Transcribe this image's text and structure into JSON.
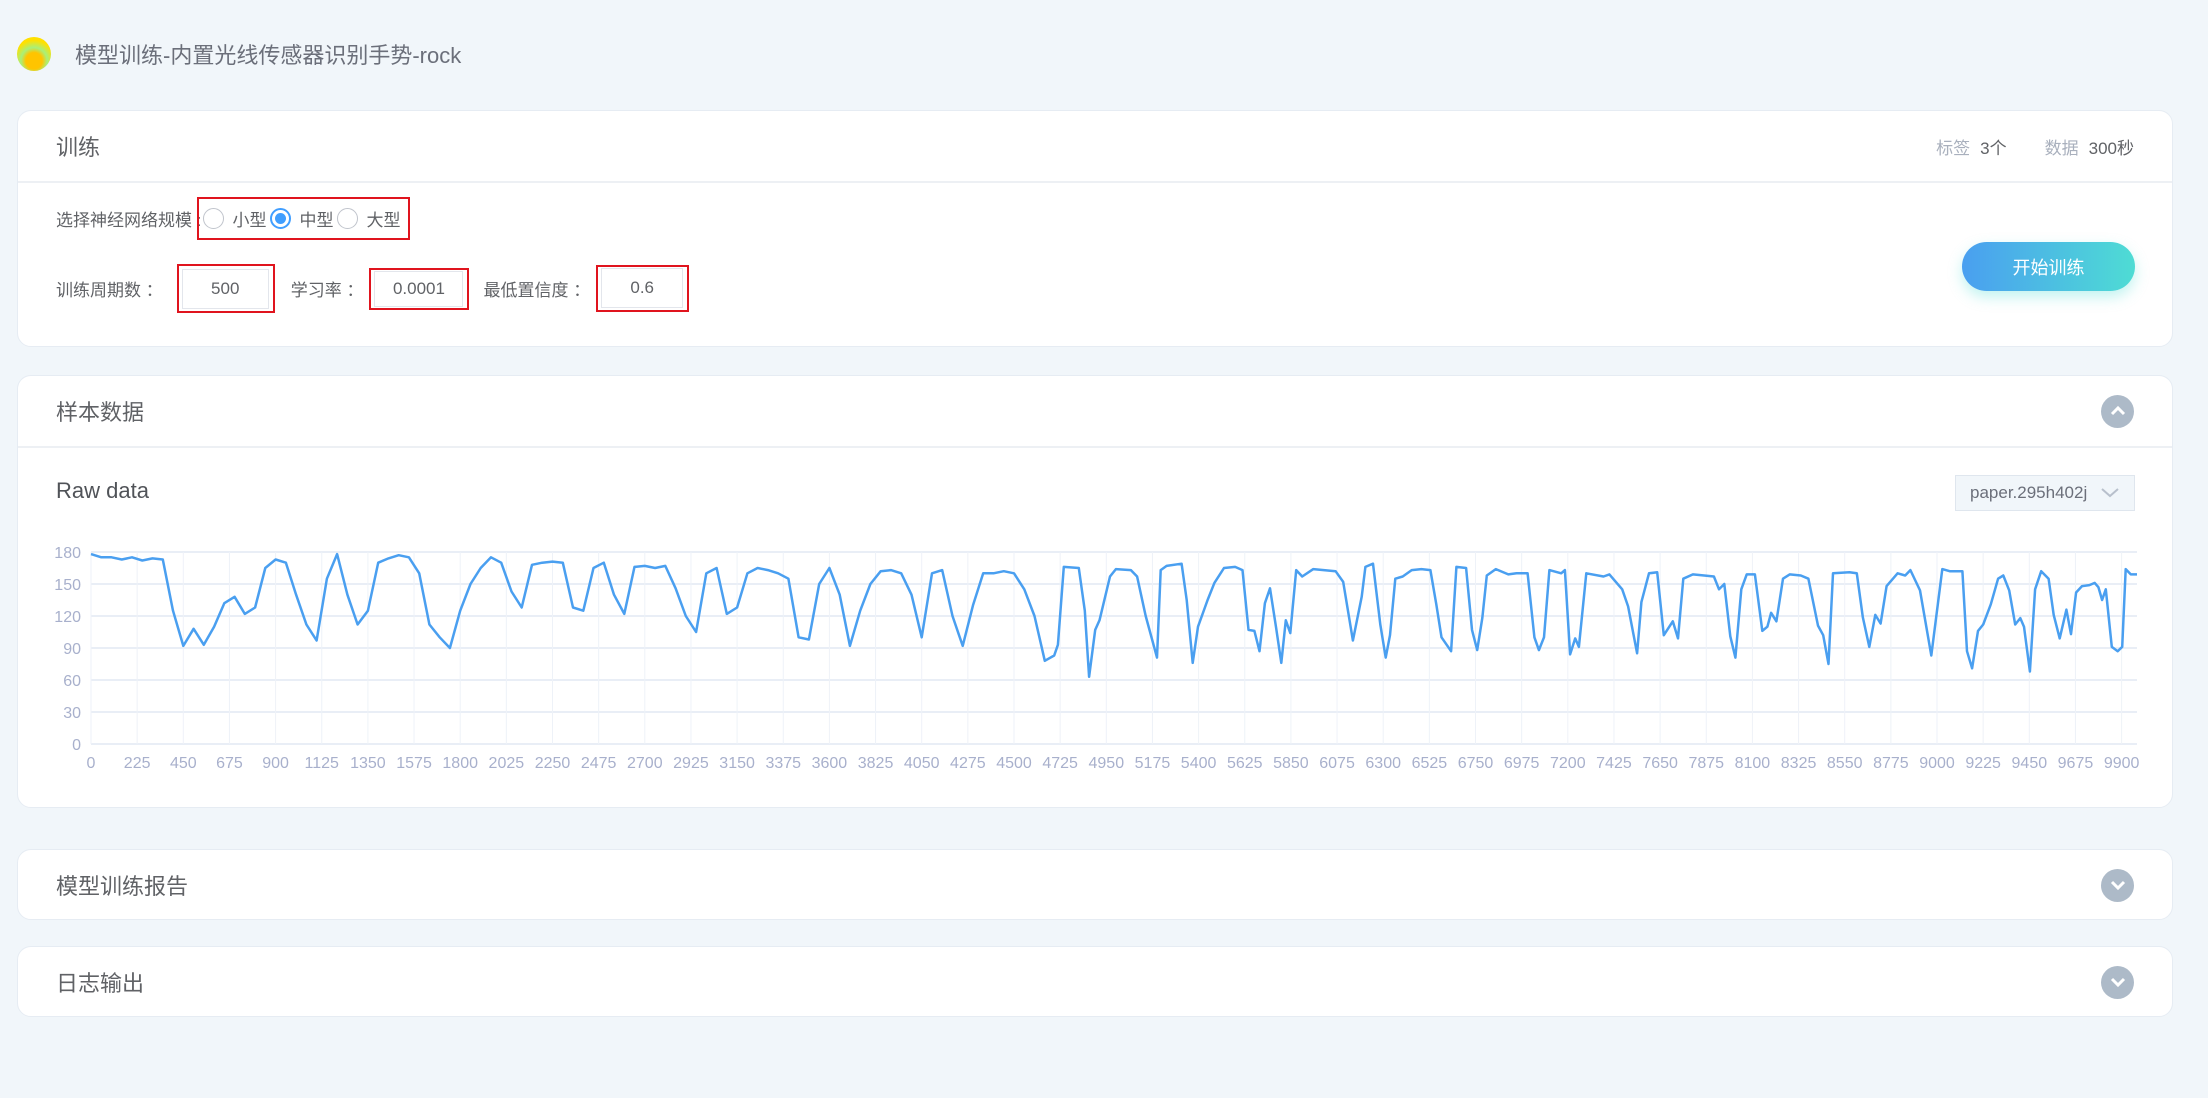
{
  "header": {
    "title": "模型训练-内置光线传感器识别手势-rock",
    "logo_icon": "sun-logo-icon"
  },
  "training": {
    "title": "训练",
    "stats": {
      "tags_label": "标签",
      "tags_value": "3个",
      "data_label": "数据",
      "data_value": "300秒"
    },
    "network_label": "选择神经网络规模 :",
    "network_options": [
      "小型",
      "中型",
      "大型"
    ],
    "network_selected": "中型",
    "epochs_label": "训练周期数 ：",
    "epochs_value": "500",
    "lr_label": "学习率 ：",
    "lr_value": "0.0001",
    "conf_label": "最低置信度 ：",
    "conf_value": "0.6",
    "start_button": "开始训练",
    "accent_colors": [
      "#4a9ff0",
      "#4edcd4"
    ]
  },
  "samples": {
    "title": "样本数据",
    "expanded": true,
    "chart_title": "Raw data",
    "sample_select": "paper.295h402j"
  },
  "report": {
    "title": "模型训练报告",
    "expanded": false
  },
  "log": {
    "title": "日志输出",
    "expanded": false
  },
  "chart_data": {
    "type": "line",
    "title": "Raw data",
    "xlim": [
      0,
      9975
    ],
    "ylim": [
      0,
      180
    ],
    "grid": true,
    "line_color": "#4a9ff0",
    "yticks": [
      "0",
      "30",
      "60",
      "90",
      "120",
      "150",
      "180"
    ],
    "xticks": [
      "0",
      "225",
      "450",
      "675",
      "900",
      "1125",
      "1350",
      "1575",
      "1800",
      "2025",
      "2250",
      "2475",
      "2700",
      "2925",
      "3150",
      "3375",
      "3600",
      "3825",
      "4050",
      "4275",
      "4500",
      "4725",
      "4950",
      "5175",
      "5400",
      "5625",
      "5850",
      "6075",
      "6300",
      "6525",
      "6750",
      "6975",
      "7200",
      "7425",
      "7650",
      "7875",
      "8100",
      "8325",
      "8550",
      "8775",
      "9000",
      "9225",
      "9450",
      "9675",
      "9900"
    ],
    "points": [
      [
        0,
        178
      ],
      [
        50,
        175
      ],
      [
        100,
        175
      ],
      [
        150,
        173
      ],
      [
        200,
        175
      ],
      [
        250,
        172
      ],
      [
        300,
        174
      ],
      [
        350,
        173
      ],
      [
        400,
        125
      ],
      [
        450,
        92
      ],
      [
        500,
        108
      ],
      [
        550,
        93
      ],
      [
        600,
        110
      ],
      [
        650,
        132
      ],
      [
        700,
        138
      ],
      [
        750,
        122
      ],
      [
        800,
        128
      ],
      [
        850,
        165
      ],
      [
        900,
        173
      ],
      [
        950,
        170
      ],
      [
        1000,
        140
      ],
      [
        1050,
        112
      ],
      [
        1100,
        97
      ],
      [
        1150,
        155
      ],
      [
        1200,
        178
      ],
      [
        1250,
        140
      ],
      [
        1300,
        112
      ],
      [
        1350,
        125
      ],
      [
        1400,
        170
      ],
      [
        1450,
        174
      ],
      [
        1500,
        177
      ],
      [
        1550,
        175
      ],
      [
        1600,
        160
      ],
      [
        1650,
        112
      ],
      [
        1700,
        100
      ],
      [
        1750,
        90
      ],
      [
        1800,
        125
      ],
      [
        1850,
        150
      ],
      [
        1900,
        165
      ],
      [
        1950,
        175
      ],
      [
        2000,
        170
      ],
      [
        2050,
        143
      ],
      [
        2100,
        128
      ],
      [
        2150,
        168
      ],
      [
        2200,
        170
      ],
      [
        2250,
        171
      ],
      [
        2300,
        170
      ],
      [
        2350,
        128
      ],
      [
        2400,
        125
      ],
      [
        2450,
        165
      ],
      [
        2500,
        170
      ],
      [
        2550,
        140
      ],
      [
        2600,
        122
      ],
      [
        2650,
        166
      ],
      [
        2700,
        167
      ],
      [
        2750,
        165
      ],
      [
        2800,
        167
      ],
      [
        2850,
        146
      ],
      [
        2900,
        120
      ],
      [
        2950,
        105
      ],
      [
        3000,
        160
      ],
      [
        3050,
        165
      ],
      [
        3100,
        122
      ],
      [
        3150,
        128
      ],
      [
        3200,
        160
      ],
      [
        3250,
        165
      ],
      [
        3300,
        163
      ],
      [
        3350,
        160
      ],
      [
        3400,
        155
      ],
      [
        3450,
        100
      ],
      [
        3500,
        98
      ],
      [
        3550,
        150
      ],
      [
        3600,
        165
      ],
      [
        3650,
        140
      ],
      [
        3700,
        92
      ],
      [
        3750,
        125
      ],
      [
        3800,
        150
      ],
      [
        3850,
        162
      ],
      [
        3900,
        163
      ],
      [
        3950,
        160
      ],
      [
        4000,
        140
      ],
      [
        4050,
        100
      ],
      [
        4100,
        160
      ],
      [
        4150,
        163
      ],
      [
        4200,
        120
      ],
      [
        4250,
        92
      ],
      [
        4300,
        130
      ],
      [
        4350,
        160
      ],
      [
        4400,
        160
      ],
      [
        4450,
        162
      ],
      [
        4500,
        160
      ],
      [
        4550,
        145
      ],
      [
        4600,
        120
      ],
      [
        4650,
        78
      ],
      [
        4696,
        83
      ],
      [
        4714,
        93
      ],
      [
        4743,
        166
      ],
      [
        4816,
        165
      ],
      [
        4845,
        125
      ],
      [
        4866,
        63
      ],
      [
        4896,
        107
      ],
      [
        4917,
        116
      ],
      [
        4968,
        157
      ],
      [
        4997,
        164
      ],
      [
        5070,
        163
      ],
      [
        5100,
        157
      ],
      [
        5142,
        120
      ],
      [
        5197,
        81
      ],
      [
        5215,
        163
      ],
      [
        5244,
        167
      ],
      [
        5317,
        169
      ],
      [
        5342,
        135
      ],
      [
        5371,
        76
      ],
      [
        5397,
        110
      ],
      [
        5444,
        135
      ],
      [
        5477,
        151
      ],
      [
        5524,
        165
      ],
      [
        5578,
        166
      ],
      [
        5614,
        163
      ],
      [
        5643,
        107
      ],
      [
        5672,
        106
      ],
      [
        5697,
        87
      ],
      [
        5723,
        132
      ],
      [
        5748,
        146
      ],
      [
        5778,
        109
      ],
      [
        5803,
        76
      ],
      [
        5825,
        116
      ],
      [
        5847,
        104
      ],
      [
        5876,
        163
      ],
      [
        5905,
        157
      ],
      [
        5959,
        164
      ],
      [
        6068,
        162
      ],
      [
        6105,
        152
      ],
      [
        6152,
        97
      ],
      [
        6195,
        138
      ],
      [
        6213,
        166
      ],
      [
        6250,
        169
      ],
      [
        6286,
        112
      ],
      [
        6312,
        81
      ],
      [
        6333,
        102
      ],
      [
        6359,
        155
      ],
      [
        6395,
        157
      ],
      [
        6439,
        163
      ],
      [
        6486,
        164
      ],
      [
        6530,
        163
      ],
      [
        6559,
        131
      ],
      [
        6584,
        100
      ],
      [
        6631,
        87
      ],
      [
        6657,
        166
      ],
      [
        6704,
        165
      ],
      [
        6733,
        107
      ],
      [
        6758,
        88
      ],
      [
        6783,
        118
      ],
      [
        6805,
        158
      ],
      [
        6849,
        164
      ],
      [
        6910,
        159
      ],
      [
        6950,
        160
      ],
      [
        7004,
        160
      ],
      [
        7037,
        100
      ],
      [
        7059,
        88
      ],
      [
        7084,
        100
      ],
      [
        7110,
        163
      ],
      [
        7168,
        160
      ],
      [
        7186,
        163
      ],
      [
        7211,
        84
      ],
      [
        7236,
        99
      ],
      [
        7254,
        91
      ],
      [
        7290,
        160
      ],
      [
        7374,
        157
      ],
      [
        7403,
        159
      ],
      [
        7465,
        145
      ],
      [
        7494,
        129
      ],
      [
        7538,
        85
      ],
      [
        7559,
        133
      ],
      [
        7596,
        160
      ],
      [
        7636,
        161
      ],
      [
        7668,
        102
      ],
      [
        7712,
        115
      ],
      [
        7737,
        99
      ],
      [
        7763,
        155
      ],
      [
        7810,
        159
      ],
      [
        7865,
        158
      ],
      [
        7912,
        157
      ],
      [
        7937,
        145
      ],
      [
        7963,
        150
      ],
      [
        7992,
        101
      ],
      [
        8017,
        81
      ],
      [
        8046,
        145
      ],
      [
        8072,
        159
      ],
      [
        8112,
        159
      ],
      [
        8148,
        106
      ],
      [
        8173,
        110
      ],
      [
        8191,
        123
      ],
      [
        8217,
        115
      ],
      [
        8249,
        155
      ],
      [
        8282,
        159
      ],
      [
        8336,
        158
      ],
      [
        8373,
        155
      ],
      [
        8420,
        111
      ],
      [
        8445,
        102
      ],
      [
        8471,
        75
      ],
      [
        8493,
        160
      ],
      [
        8573,
        161
      ],
      [
        8609,
        160
      ],
      [
        8638,
        119
      ],
      [
        8670,
        91
      ],
      [
        8699,
        121
      ],
      [
        8725,
        113
      ],
      [
        8754,
        148
      ],
      [
        8808,
        160
      ],
      [
        8845,
        158
      ],
      [
        8870,
        163
      ],
      [
        8917,
        144
      ],
      [
        8972,
        83
      ],
      [
        9026,
        164
      ],
      [
        9062,
        162
      ],
      [
        9124,
        162
      ],
      [
        9146,
        87
      ],
      [
        9171,
        71
      ],
      [
        9200,
        106
      ],
      [
        9225,
        112
      ],
      [
        9262,
        131
      ],
      [
        9298,
        155
      ],
      [
        9323,
        158
      ],
      [
        9352,
        144
      ],
      [
        9381,
        112
      ],
      [
        9406,
        118
      ],
      [
        9424,
        110
      ],
      [
        9453,
        68
      ],
      [
        9478,
        145
      ],
      [
        9508,
        162
      ],
      [
        9544,
        155
      ],
      [
        9569,
        121
      ],
      [
        9598,
        99
      ],
      [
        9631,
        126
      ],
      [
        9653,
        103
      ],
      [
        9678,
        142
      ],
      [
        9707,
        148
      ],
      [
        9743,
        149
      ],
      [
        9769,
        151
      ],
      [
        9787,
        147
      ],
      [
        9805,
        135
      ],
      [
        9823,
        145
      ],
      [
        9852,
        91
      ],
      [
        9881,
        87
      ],
      [
        9903,
        91
      ],
      [
        9920,
        164
      ],
      [
        9945,
        159
      ],
      [
        9975,
        159
      ]
    ]
  }
}
